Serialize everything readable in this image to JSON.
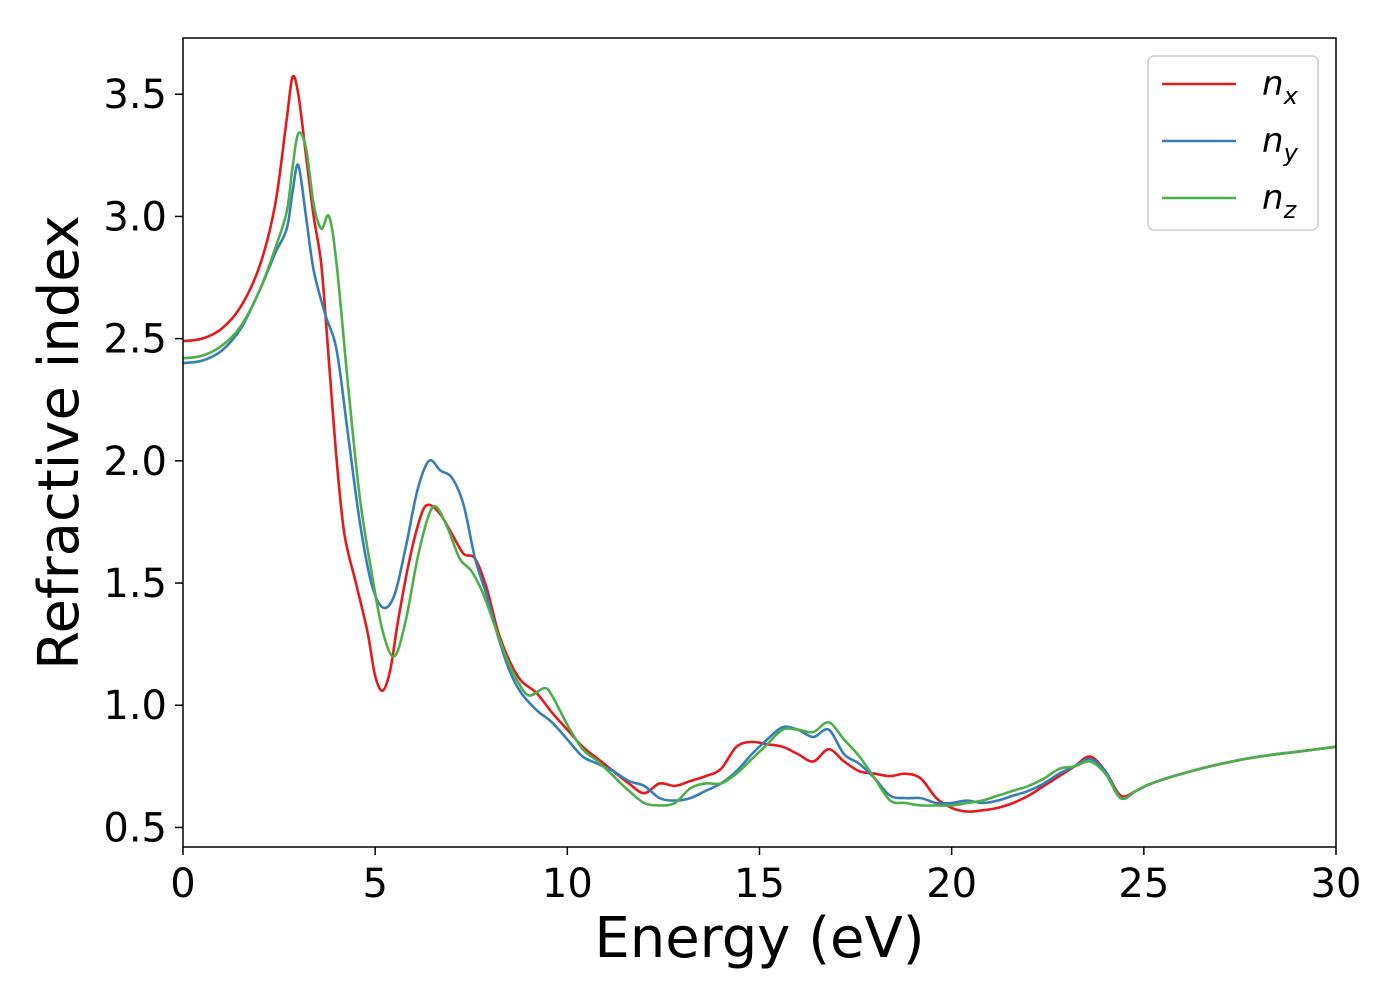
{
  "chart_data": {
    "type": "line",
    "title": "",
    "xlabel": "Energy (eV)",
    "ylabel": "Refractive index",
    "xlim": [
      0,
      30
    ],
    "ylim": [
      0.42,
      3.73
    ],
    "xticks": [
      0,
      5,
      10,
      15,
      20,
      25,
      30
    ],
    "yticks": [
      0.5,
      1.0,
      1.5,
      2.0,
      2.5,
      3.0,
      3.5
    ],
    "grid": false,
    "legend_position": "top-right",
    "series": [
      {
        "name": "n",
        "subscript": "x",
        "color": "#e41a1c",
        "points": [
          [
            0,
            2.49
          ],
          [
            0.5,
            2.5
          ],
          [
            1.0,
            2.54
          ],
          [
            1.5,
            2.63
          ],
          [
            2.0,
            2.8
          ],
          [
            2.4,
            3.05
          ],
          [
            2.7,
            3.4
          ],
          [
            2.85,
            3.57
          ],
          [
            3.0,
            3.5
          ],
          [
            3.2,
            3.25
          ],
          [
            3.4,
            3.0
          ],
          [
            3.6,
            2.8
          ],
          [
            3.8,
            2.4
          ],
          [
            4.0,
            2.0
          ],
          [
            4.2,
            1.7
          ],
          [
            4.5,
            1.5
          ],
          [
            4.8,
            1.3
          ],
          [
            5.0,
            1.12
          ],
          [
            5.2,
            1.06
          ],
          [
            5.4,
            1.15
          ],
          [
            5.6,
            1.35
          ],
          [
            5.9,
            1.6
          ],
          [
            6.2,
            1.78
          ],
          [
            6.4,
            1.82
          ],
          [
            6.7,
            1.78
          ],
          [
            7.0,
            1.7
          ],
          [
            7.3,
            1.62
          ],
          [
            7.6,
            1.6
          ],
          [
            7.9,
            1.48
          ],
          [
            8.2,
            1.3
          ],
          [
            8.5,
            1.18
          ],
          [
            8.8,
            1.1
          ],
          [
            9.2,
            1.05
          ],
          [
            9.6,
            0.97
          ],
          [
            10.0,
            0.9
          ],
          [
            10.4,
            0.83
          ],
          [
            10.8,
            0.78
          ],
          [
            11.2,
            0.73
          ],
          [
            11.6,
            0.68
          ],
          [
            12.0,
            0.64
          ],
          [
            12.4,
            0.68
          ],
          [
            12.8,
            0.67
          ],
          [
            13.2,
            0.69
          ],
          [
            13.6,
            0.71
          ],
          [
            14.0,
            0.74
          ],
          [
            14.4,
            0.83
          ],
          [
            14.8,
            0.85
          ],
          [
            15.2,
            0.84
          ],
          [
            15.6,
            0.83
          ],
          [
            16.0,
            0.8
          ],
          [
            16.4,
            0.77
          ],
          [
            16.8,
            0.82
          ],
          [
            17.2,
            0.77
          ],
          [
            17.6,
            0.73
          ],
          [
            18.0,
            0.72
          ],
          [
            18.4,
            0.71
          ],
          [
            18.8,
            0.72
          ],
          [
            19.2,
            0.7
          ],
          [
            19.6,
            0.62
          ],
          [
            20.0,
            0.58
          ],
          [
            20.4,
            0.565
          ],
          [
            20.8,
            0.57
          ],
          [
            21.2,
            0.58
          ],
          [
            21.6,
            0.6
          ],
          [
            22.0,
            0.63
          ],
          [
            22.4,
            0.67
          ],
          [
            22.8,
            0.71
          ],
          [
            23.2,
            0.75
          ],
          [
            23.6,
            0.79
          ],
          [
            24.0,
            0.73
          ],
          [
            24.4,
            0.63
          ],
          [
            24.8,
            0.65
          ],
          [
            25.2,
            0.68
          ],
          [
            26.0,
            0.72
          ],
          [
            27.0,
            0.76
          ],
          [
            28.0,
            0.79
          ],
          [
            29.0,
            0.81
          ],
          [
            30.0,
            0.83
          ]
        ]
      },
      {
        "name": "n",
        "subscript": "y",
        "color": "#377eb8",
        "points": [
          [
            0,
            2.4
          ],
          [
            0.5,
            2.41
          ],
          [
            1.0,
            2.45
          ],
          [
            1.5,
            2.54
          ],
          [
            2.0,
            2.7
          ],
          [
            2.4,
            2.85
          ],
          [
            2.7,
            2.95
          ],
          [
            2.85,
            3.1
          ],
          [
            3.0,
            3.21
          ],
          [
            3.2,
            3.0
          ],
          [
            3.4,
            2.78
          ],
          [
            3.7,
            2.6
          ],
          [
            4.0,
            2.45
          ],
          [
            4.3,
            2.1
          ],
          [
            4.6,
            1.75
          ],
          [
            4.9,
            1.5
          ],
          [
            5.2,
            1.4
          ],
          [
            5.5,
            1.45
          ],
          [
            5.8,
            1.65
          ],
          [
            6.1,
            1.88
          ],
          [
            6.4,
            2.0
          ],
          [
            6.7,
            1.96
          ],
          [
            7.0,
            1.93
          ],
          [
            7.3,
            1.82
          ],
          [
            7.6,
            1.6
          ],
          [
            7.9,
            1.45
          ],
          [
            8.2,
            1.28
          ],
          [
            8.5,
            1.14
          ],
          [
            8.8,
            1.05
          ],
          [
            9.2,
            0.98
          ],
          [
            9.6,
            0.93
          ],
          [
            10.0,
            0.86
          ],
          [
            10.4,
            0.79
          ],
          [
            10.8,
            0.76
          ],
          [
            11.2,
            0.73
          ],
          [
            11.6,
            0.69
          ],
          [
            12.0,
            0.67
          ],
          [
            12.4,
            0.62
          ],
          [
            12.8,
            0.61
          ],
          [
            13.2,
            0.62
          ],
          [
            13.6,
            0.65
          ],
          [
            14.0,
            0.68
          ],
          [
            14.4,
            0.73
          ],
          [
            14.8,
            0.8
          ],
          [
            15.2,
            0.86
          ],
          [
            15.6,
            0.91
          ],
          [
            16.0,
            0.9
          ],
          [
            16.4,
            0.87
          ],
          [
            16.8,
            0.9
          ],
          [
            17.2,
            0.8
          ],
          [
            17.6,
            0.76
          ],
          [
            18.0,
            0.7
          ],
          [
            18.4,
            0.63
          ],
          [
            18.8,
            0.62
          ],
          [
            19.2,
            0.62
          ],
          [
            19.6,
            0.6
          ],
          [
            20.0,
            0.6
          ],
          [
            20.4,
            0.61
          ],
          [
            20.8,
            0.6
          ],
          [
            21.2,
            0.61
          ],
          [
            21.6,
            0.63
          ],
          [
            22.0,
            0.65
          ],
          [
            22.4,
            0.68
          ],
          [
            22.8,
            0.72
          ],
          [
            23.2,
            0.75
          ],
          [
            23.6,
            0.78
          ],
          [
            24.0,
            0.73
          ],
          [
            24.4,
            0.62
          ],
          [
            24.8,
            0.65
          ],
          [
            25.2,
            0.68
          ],
          [
            26.0,
            0.72
          ],
          [
            27.0,
            0.76
          ],
          [
            28.0,
            0.79
          ],
          [
            29.0,
            0.81
          ],
          [
            30.0,
            0.83
          ]
        ]
      },
      {
        "name": "n",
        "subscript": "z",
        "color": "#4daf4a",
        "points": [
          [
            0,
            2.42
          ],
          [
            0.5,
            2.43
          ],
          [
            1.0,
            2.47
          ],
          [
            1.5,
            2.55
          ],
          [
            2.0,
            2.7
          ],
          [
            2.4,
            2.87
          ],
          [
            2.7,
            3.02
          ],
          [
            2.85,
            3.2
          ],
          [
            3.0,
            3.34
          ],
          [
            3.2,
            3.28
          ],
          [
            3.4,
            3.05
          ],
          [
            3.6,
            2.95
          ],
          [
            3.8,
            3.0
          ],
          [
            4.0,
            2.8
          ],
          [
            4.3,
            2.3
          ],
          [
            4.6,
            1.85
          ],
          [
            4.9,
            1.55
          ],
          [
            5.2,
            1.3
          ],
          [
            5.5,
            1.2
          ],
          [
            5.8,
            1.35
          ],
          [
            6.1,
            1.6
          ],
          [
            6.4,
            1.78
          ],
          [
            6.6,
            1.81
          ],
          [
            6.9,
            1.72
          ],
          [
            7.2,
            1.6
          ],
          [
            7.5,
            1.55
          ],
          [
            7.8,
            1.46
          ],
          [
            8.1,
            1.33
          ],
          [
            8.4,
            1.2
          ],
          [
            8.7,
            1.1
          ],
          [
            9.0,
            1.04
          ],
          [
            9.4,
            1.07
          ],
          [
            9.6,
            1.04
          ],
          [
            10.0,
            0.92
          ],
          [
            10.4,
            0.82
          ],
          [
            10.8,
            0.77
          ],
          [
            11.2,
            0.71
          ],
          [
            11.6,
            0.65
          ],
          [
            12.0,
            0.6
          ],
          [
            12.4,
            0.59
          ],
          [
            12.8,
            0.6
          ],
          [
            13.2,
            0.66
          ],
          [
            13.6,
            0.68
          ],
          [
            14.0,
            0.68
          ],
          [
            14.4,
            0.72
          ],
          [
            14.8,
            0.78
          ],
          [
            15.2,
            0.84
          ],
          [
            15.6,
            0.9
          ],
          [
            16.0,
            0.9
          ],
          [
            16.4,
            0.89
          ],
          [
            16.8,
            0.93
          ],
          [
            17.2,
            0.86
          ],
          [
            17.6,
            0.79
          ],
          [
            18.0,
            0.7
          ],
          [
            18.4,
            0.61
          ],
          [
            18.8,
            0.6
          ],
          [
            19.2,
            0.59
          ],
          [
            19.6,
            0.59
          ],
          [
            20.0,
            0.59
          ],
          [
            20.4,
            0.6
          ],
          [
            20.8,
            0.61
          ],
          [
            21.2,
            0.63
          ],
          [
            21.6,
            0.65
          ],
          [
            22.0,
            0.67
          ],
          [
            22.4,
            0.7
          ],
          [
            22.8,
            0.74
          ],
          [
            23.2,
            0.75
          ],
          [
            23.6,
            0.77
          ],
          [
            24.0,
            0.72
          ],
          [
            24.4,
            0.62
          ],
          [
            24.8,
            0.65
          ],
          [
            25.2,
            0.68
          ],
          [
            26.0,
            0.72
          ],
          [
            27.0,
            0.76
          ],
          [
            28.0,
            0.79
          ],
          [
            29.0,
            0.81
          ],
          [
            30.0,
            0.83
          ]
        ]
      }
    ]
  }
}
